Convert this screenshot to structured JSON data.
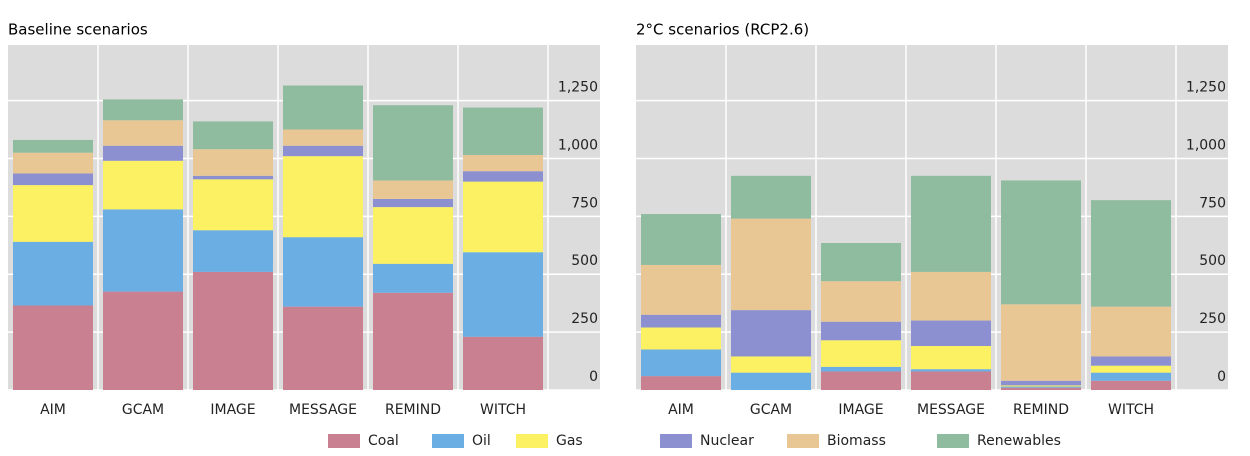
{
  "chart_data": [
    {
      "type": "stacked_bar",
      "title": "Baseline scenarios",
      "categories": [
        "AIM",
        "GCAM",
        "IMAGE",
        "MESSAGE",
        "REMIND",
        "WITCH"
      ],
      "series": [
        {
          "name": "Coal",
          "color": "#c98191",
          "values": [
            365,
            425,
            510,
            360,
            420,
            230
          ]
        },
        {
          "name": "Oil",
          "color": "#6aaee4",
          "values": [
            275,
            355,
            180,
            300,
            125,
            365
          ]
        },
        {
          "name": "Gas",
          "color": "#fbf163",
          "values": [
            245,
            210,
            220,
            350,
            245,
            305
          ]
        },
        {
          "name": "Nuclear",
          "color": "#8c90d0",
          "values": [
            50,
            65,
            15,
            45,
            35,
            45
          ]
        },
        {
          "name": "Biomass",
          "color": "#e8c795",
          "values": [
            90,
            110,
            115,
            70,
            80,
            70
          ]
        },
        {
          "name": "Renewables",
          "color": "#8fbc9f",
          "values": [
            55,
            90,
            120,
            190,
            325,
            205
          ]
        }
      ],
      "ylim": [
        0,
        1490
      ],
      "yticks": [
        0,
        250,
        500,
        750,
        {
          "value": 1000,
          "label": "1,000"
        },
        {
          "value": 1250,
          "label": "1,250"
        }
      ],
      "grid": true
    },
    {
      "type": "stacked_bar",
      "title": "2°C scenarios (RCP2.6)",
      "categories": [
        "AIM",
        "GCAM",
        "IMAGE",
        "MESSAGE",
        "REMIND",
        "WITCH"
      ],
      "series": [
        {
          "values": [
            60,
            0,
            80,
            80,
            10,
            40
          ]
        },
        {
          "values": [
            115,
            75,
            20,
            10,
            5,
            35
          ]
        },
        {
          "values": [
            95,
            70,
            115,
            100,
            5,
            30
          ]
        },
        {
          "values": [
            55,
            200,
            80,
            110,
            20,
            40
          ]
        },
        {
          "values": [
            215,
            395,
            175,
            210,
            330,
            215
          ]
        },
        {
          "values": [
            220,
            185,
            165,
            415,
            535,
            460
          ]
        }
      ],
      "ylim": [
        0,
        1490
      ],
      "yticks": [
        0,
        250,
        500,
        750,
        {
          "value": 1000,
          "label": "1,000"
        },
        {
          "value": 1250,
          "label": "1,250"
        }
      ],
      "grid": true
    }
  ]
}
